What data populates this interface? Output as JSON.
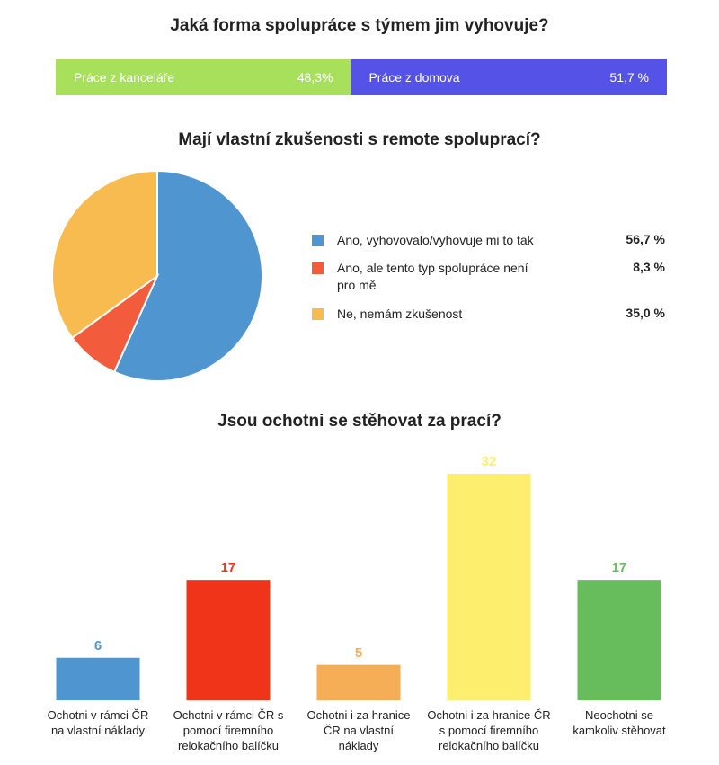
{
  "chart_data": [
    {
      "type": "stacked_bar",
      "title": "Jaká forma spolupráce s týmem jim vyhovuje?",
      "series": [
        {
          "name": "Práce z kanceláře",
          "color": "#a8e05b",
          "values": [
            48.3
          ],
          "value_labels": [
            "48,3%"
          ]
        },
        {
          "name": "Práce z domova",
          "color": "#5552e8",
          "values": [
            51.7
          ],
          "value_labels": [
            "51,7 %"
          ]
        }
      ]
    },
    {
      "type": "pie",
      "title": "Mají vlastní zkušenosti s remote spoluprací?",
      "categories": [
        "Ano, vyhovovalo/vyhovuje mi to tak",
        "Ano, ale tento typ spolupráce není pro mě",
        "Ne, nemám zkušenost"
      ],
      "values": [
        56.7,
        8.3,
        35.0
      ],
      "value_labels": [
        "56,7 %",
        "8,3 %",
        "35,0 %"
      ],
      "colors": [
        "#4f95d0",
        "#f25c3c",
        "#f8bb50"
      ]
    },
    {
      "type": "bar",
      "title": "Jsou ochotni se stěhovat za prací?",
      "categories": [
        "Ochotni v rámci ČR na vlastní náklady",
        "Ochotni v rámci ČR s pomocí firemního relokačního balíčku",
        "Ochotni i za hranice ČR na vlastní náklady",
        "Ochotni i za hranice ČR s pomocí firemního relokačního balíčku",
        "Neochotni se kamkoliv stěhovat"
      ],
      "values": [
        6,
        17,
        5,
        32,
        17
      ],
      "colors": [
        "#4f95d0",
        "#ef3419",
        "#f6ae56",
        "#fdee6e",
        "#67bd5c"
      ]
    }
  ]
}
